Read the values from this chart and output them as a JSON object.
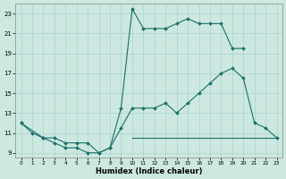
{
  "xlabel": "Humidex (Indice chaleur)",
  "bg_color": "#cce8e0",
  "grid_color": "#a8d4cc",
  "line_color": "#1a7068",
  "xlim": [
    -0.5,
    23.5
  ],
  "ylim": [
    8.5,
    24
  ],
  "xticks": [
    0,
    1,
    2,
    3,
    4,
    5,
    6,
    7,
    8,
    9,
    10,
    11,
    12,
    13,
    14,
    15,
    16,
    17,
    18,
    19,
    20,
    21,
    22,
    23
  ],
  "yticks": [
    9,
    11,
    13,
    15,
    17,
    19,
    21,
    23
  ],
  "line1_x": [
    0,
    1,
    2,
    3,
    4,
    5,
    6,
    7,
    8,
    9,
    10,
    11,
    12,
    13,
    14,
    15,
    16,
    17,
    18,
    19,
    20
  ],
  "line1_y": [
    12.0,
    11.0,
    10.5,
    10.0,
    9.5,
    9.5,
    9.0,
    9.0,
    9.5,
    13.5,
    23.5,
    21.5,
    21.5,
    21.5,
    22.0,
    22.5,
    22.0,
    22.0,
    22.0,
    19.5,
    19.5
  ],
  "line2_x": [
    0,
    2,
    3,
    4,
    5,
    6,
    7,
    8,
    9,
    10,
    11,
    12,
    13,
    14,
    15,
    16,
    17,
    18,
    19,
    20,
    21,
    22,
    23
  ],
  "line2_y": [
    12.0,
    10.5,
    10.5,
    10.0,
    10.0,
    10.0,
    9.0,
    9.5,
    11.5,
    13.5,
    13.5,
    13.5,
    14.0,
    13.0,
    14.0,
    15.0,
    16.0,
    17.0,
    17.5,
    16.5,
    12.0,
    11.5,
    10.5
  ],
  "line3_x": [
    10,
    11,
    12,
    13,
    14,
    15,
    16,
    17,
    18,
    19,
    20,
    21,
    22,
    23
  ],
  "line3_y": [
    10.5,
    10.5,
    10.5,
    10.5,
    10.5,
    10.5,
    10.5,
    10.5,
    10.5,
    10.5,
    10.5,
    10.5,
    10.5,
    10.5
  ]
}
